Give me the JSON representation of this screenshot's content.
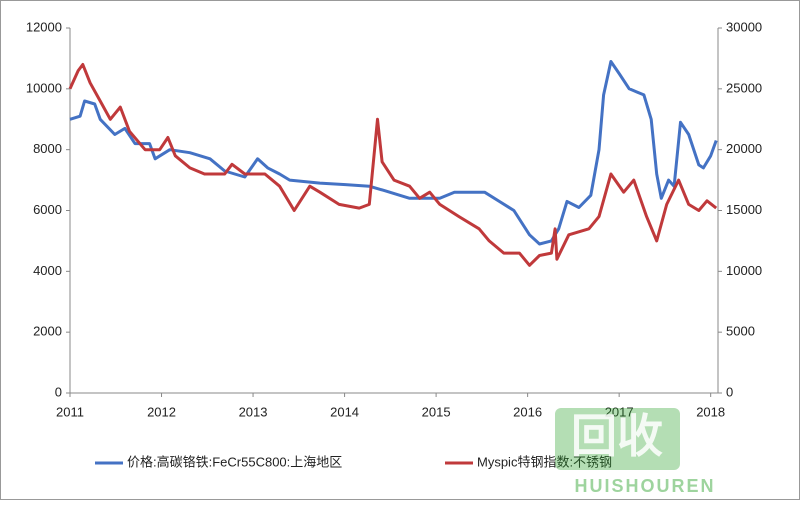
{
  "chart_data": {
    "type": "line",
    "xlim": [
      2011,
      2018.08
    ],
    "xticks": [
      2011,
      2012,
      2013,
      2014,
      2015,
      2016,
      2017,
      2018
    ],
    "ylim": [
      0,
      12000
    ],
    "yticks": [
      0,
      2000,
      4000,
      6000,
      8000,
      10000,
      12000
    ],
    "y2lim": [
      0,
      30000
    ],
    "y2ticks": [
      0,
      5000,
      10000,
      15000,
      20000,
      25000,
      30000
    ],
    "legend": "bottom",
    "watermark": [
      "回收",
      "HUISHOUREN"
    ],
    "series": [
      {
        "name": "价格:高碳铬铁:FeCr55C800:上海地区",
        "color": "#4472c4",
        "axis": "y",
        "x": [
          2011.0,
          2011.11,
          2011.16,
          2011.27,
          2011.33,
          2011.49,
          2011.6,
          2011.71,
          2011.87,
          2011.93,
          2012.09,
          2012.31,
          2012.53,
          2012.69,
          2012.91,
          2013.05,
          2013.16,
          2013.29,
          2013.4,
          2013.73,
          2014.01,
          2014.27,
          2014.44,
          2014.71,
          2015.04,
          2015.2,
          2015.53,
          2015.69,
          2015.85,
          2016.02,
          2016.13,
          2016.26,
          2016.34,
          2016.43,
          2016.56,
          2016.69,
          2016.78,
          2016.83,
          2016.91,
          2017.0,
          2017.11,
          2017.27,
          2017.35,
          2017.41,
          2017.46,
          2017.54,
          2017.6,
          2017.67,
          2017.76,
          2017.87,
          2017.92,
          2018.0,
          2018.06
        ],
        "values": [
          9000,
          9100,
          9600,
          9500,
          9000,
          8500,
          8700,
          8200,
          8200,
          7700,
          8000,
          7900,
          7700,
          7300,
          7100,
          7700,
          7400,
          7200,
          7000,
          6900,
          6850,
          6800,
          6650,
          6400,
          6400,
          6600,
          6600,
          6300,
          6000,
          5200,
          4900,
          5000,
          5400,
          6300,
          6100,
          6500,
          8000,
          9800,
          10900,
          10500,
          10000,
          9800,
          9000,
          7200,
          6400,
          7000,
          6800,
          8900,
          8500,
          7500,
          7400,
          7800,
          8300
        ]
      },
      {
        "name": "Myspic特钢指数:不锈钢",
        "color": "#c0393b",
        "axis": "y2",
        "x": [
          2011.0,
          2011.09,
          2011.14,
          2011.22,
          2011.33,
          2011.44,
          2011.55,
          2011.65,
          2011.82,
          2011.98,
          2012.07,
          2012.15,
          2012.31,
          2012.47,
          2012.69,
          2012.77,
          2012.91,
          2013.13,
          2013.29,
          2013.45,
          2013.62,
          2013.73,
          2013.94,
          2014.16,
          2014.27,
          2014.36,
          2014.41,
          2014.54,
          2014.71,
          2014.82,
          2014.93,
          2015.04,
          2015.25,
          2015.47,
          2015.58,
          2015.74,
          2015.91,
          2016.02,
          2016.13,
          2016.26,
          2016.3,
          2016.32,
          2016.45,
          2016.67,
          2016.78,
          2016.91,
          2017.05,
          2017.16,
          2017.3,
          2017.41,
          2017.52,
          2017.65,
          2017.76,
          2017.87,
          2017.96,
          2018.06
        ],
        "values": [
          25000,
          26500,
          27000,
          25500,
          24000,
          22500,
          23500,
          21500,
          20000,
          20000,
          21000,
          19500,
          18500,
          18000,
          18000,
          18800,
          18000,
          18000,
          17000,
          15000,
          17000,
          16500,
          15500,
          15200,
          15500,
          22500,
          19000,
          17500,
          17000,
          16000,
          16500,
          15500,
          14500,
          13500,
          12500,
          11500,
          11500,
          10500,
          11300,
          11500,
          13500,
          11000,
          13000,
          13500,
          14500,
          18000,
          16500,
          17500,
          14500,
          12500,
          15500,
          17500,
          15500,
          15000,
          15800,
          15200
        ]
      }
    ]
  }
}
